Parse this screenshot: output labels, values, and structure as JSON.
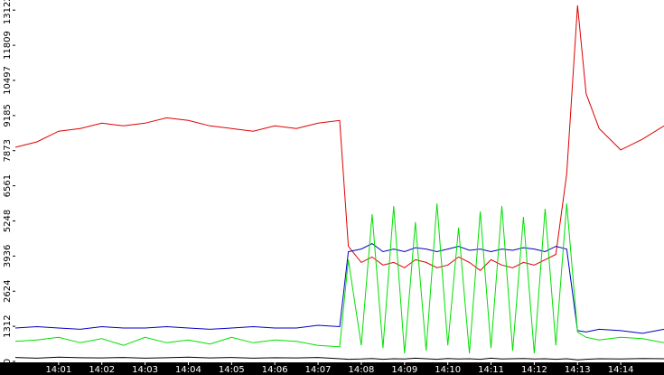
{
  "chart_data": {
    "type": "line",
    "x": [
      840,
      840.5,
      841,
      841.5,
      842,
      842.5,
      843,
      843.5,
      844,
      844.5,
      845,
      845.5,
      846,
      846.5,
      847,
      847.5,
      847.7,
      848,
      848.25,
      848.5,
      848.75,
      849,
      849.25,
      849.5,
      849.75,
      850,
      850.25,
      850.5,
      850.75,
      851,
      851.25,
      851.5,
      851.75,
      852,
      852.25,
      852.5,
      852.75,
      853,
      853.2,
      853.5,
      854,
      854.5,
      855
    ],
    "series": [
      {
        "color": "#e00000",
        "values": [
          8000,
          8200,
          8600,
          8700,
          8900,
          8800,
          8900,
          9100,
          9000,
          8800,
          8700,
          8600,
          8800,
          8700,
          8900,
          9000,
          4300,
          3700,
          3900,
          3600,
          3700,
          3500,
          3800,
          3700,
          3500,
          3600,
          3900,
          3700,
          3400,
          3800,
          3600,
          3500,
          3700,
          3600,
          3800,
          4000,
          7000,
          13300,
          10000,
          8700,
          7900,
          8300,
          8800
        ]
      },
      {
        "color": "#0000c0",
        "values": [
          1250,
          1300,
          1250,
          1200,
          1300,
          1250,
          1250,
          1300,
          1250,
          1200,
          1250,
          1300,
          1250,
          1250,
          1350,
          1300,
          4100,
          4200,
          4400,
          4100,
          4200,
          4100,
          4250,
          4200,
          4100,
          4200,
          4300,
          4150,
          4200,
          4100,
          4200,
          4150,
          4250,
          4200,
          4100,
          4300,
          4200,
          1150,
          1100,
          1200,
          1150,
          1050,
          1200
        ]
      },
      {
        "color": "#00e000",
        "values": [
          750,
          800,
          900,
          700,
          850,
          600,
          900,
          700,
          800,
          650,
          900,
          700,
          800,
          750,
          600,
          550,
          3800,
          600,
          5500,
          500,
          5800,
          300,
          5200,
          400,
          5900,
          600,
          5000,
          300,
          5600,
          500,
          5800,
          400,
          5400,
          300,
          5700,
          600,
          5900,
          1100,
          900,
          800,
          900,
          850,
          700
        ]
      },
      {
        "color": "#000000",
        "values": [
          150,
          120,
          160,
          140,
          130,
          150,
          120,
          140,
          160,
          130,
          150,
          120,
          140,
          130,
          150,
          100,
          80,
          90,
          110,
          80,
          100,
          90,
          120,
          100,
          80,
          110,
          90,
          100,
          80,
          120,
          90,
          100,
          110,
          90,
          100,
          80,
          100,
          60,
          80,
          100,
          90,
          110,
          100
        ]
      }
    ],
    "xlim": [
      840,
      855
    ],
    "xticks": [
      {
        "value": 841,
        "label": "14:01"
      },
      {
        "value": 842,
        "label": "14:02"
      },
      {
        "value": 843,
        "label": "14:03"
      },
      {
        "value": 844,
        "label": "14:04"
      },
      {
        "value": 845,
        "label": "14:05"
      },
      {
        "value": 846,
        "label": "14:06"
      },
      {
        "value": 847,
        "label": "14:07"
      },
      {
        "value": 848,
        "label": "14:08"
      },
      {
        "value": 849,
        "label": "14:09"
      },
      {
        "value": 850,
        "label": "14:10"
      },
      {
        "value": 851,
        "label": "14:11"
      },
      {
        "value": 852,
        "label": "14:12"
      },
      {
        "value": 853,
        "label": "14:13"
      },
      {
        "value": 854,
        "label": "14:14"
      }
    ],
    "ylim": [
      0,
      13500
    ],
    "yticks": [
      0,
      1312,
      2624,
      3936,
      5248,
      6561,
      7873,
      9185,
      10497,
      11809,
      13122
    ]
  }
}
